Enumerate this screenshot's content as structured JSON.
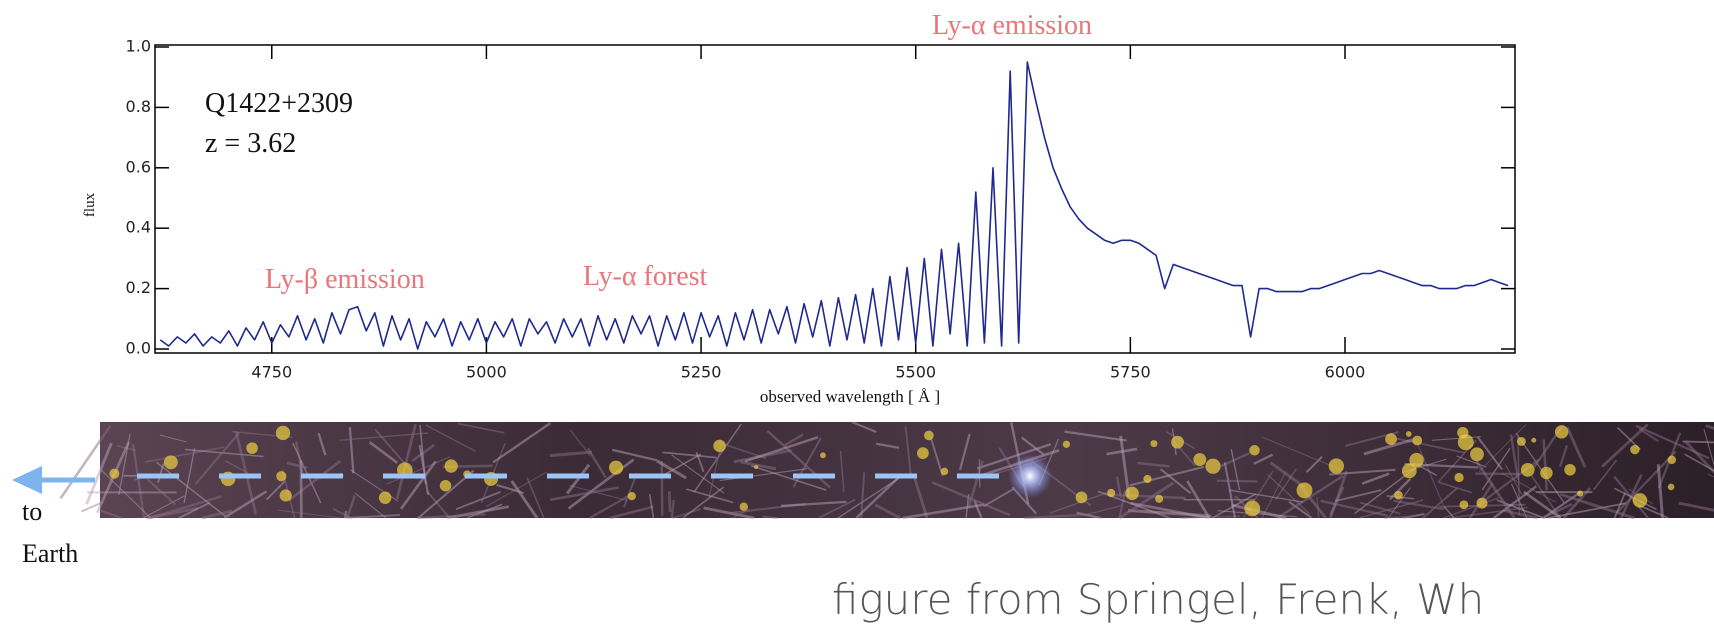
{
  "chart_data": {
    "type": "line",
    "color": "#1f2a8f",
    "ylabel": "flux",
    "xlabel": "observed wavelength [ Å ]",
    "annotations": [
      "Q1422+2309",
      "z = 3.62",
      "Ly-β emission",
      "Ly-α forest",
      "Ly-α emission"
    ],
    "xlim": [
      4614,
      6198
    ],
    "ylim": [
      0,
      1
    ],
    "xticks": [
      4750,
      5000,
      5250,
      5500,
      5750,
      6000
    ],
    "yticks": [
      {
        "value": 0,
        "label": "0.0"
      },
      0.2,
      0.4,
      0.6,
      0.8,
      {
        "value": 1,
        "label": "1.0"
      }
    ],
    "x": [
      4620,
      4630,
      4640,
      4650,
      4660,
      4670,
      4680,
      4690,
      4700,
      4710,
      4720,
      4730,
      4740,
      4750,
      4760,
      4770,
      4780,
      4790,
      4800,
      4810,
      4820,
      4830,
      4840,
      4850,
      4860,
      4870,
      4880,
      4890,
      4900,
      4910,
      4920,
      4930,
      4940,
      4950,
      4960,
      4970,
      4980,
      4990,
      5000,
      5010,
      5020,
      5030,
      5040,
      5050,
      5060,
      5070,
      5080,
      5090,
      5100,
      5110,
      5120,
      5130,
      5140,
      5150,
      5160,
      5170,
      5180,
      5190,
      5200,
      5210,
      5220,
      5230,
      5240,
      5250,
      5260,
      5270,
      5280,
      5290,
      5300,
      5310,
      5320,
      5330,
      5340,
      5350,
      5360,
      5370,
      5380,
      5390,
      5400,
      5410,
      5420,
      5430,
      5440,
      5450,
      5460,
      5470,
      5480,
      5490,
      5500,
      5510,
      5520,
      5530,
      5540,
      5550,
      5560,
      5570,
      5580,
      5590,
      5600,
      5610,
      5620,
      5630,
      5640,
      5650,
      5660,
      5670,
      5680,
      5690,
      5700,
      5710,
      5720,
      5730,
      5740,
      5750,
      5760,
      5770,
      5780,
      5790,
      5800,
      5810,
      5820,
      5830,
      5840,
      5850,
      5860,
      5870,
      5880,
      5890,
      5900,
      5910,
      5920,
      5930,
      5940,
      5950,
      5960,
      5970,
      5980,
      5990,
      6000,
      6010,
      6020,
      6030,
      6040,
      6050,
      6060,
      6070,
      6080,
      6090,
      6100,
      6110,
      6120,
      6130,
      6140,
      6150,
      6160,
      6170,
      6180,
      6190
    ],
    "values": [
      0.03,
      0.01,
      0.04,
      0.02,
      0.05,
      0.01,
      0.04,
      0.02,
      0.06,
      0.01,
      0.07,
      0.03,
      0.09,
      0.02,
      0.08,
      0.04,
      0.11,
      0.03,
      0.1,
      0.02,
      0.12,
      0.05,
      0.13,
      0.14,
      0.06,
      0.12,
      0.01,
      0.11,
      0.03,
      0.1,
      0.0,
      0.09,
      0.04,
      0.1,
      0.01,
      0.09,
      0.03,
      0.1,
      0.02,
      0.09,
      0.04,
      0.1,
      0.01,
      0.1,
      0.05,
      0.09,
      0.02,
      0.1,
      0.04,
      0.1,
      0.01,
      0.11,
      0.03,
      0.1,
      0.02,
      0.11,
      0.05,
      0.11,
      0.01,
      0.11,
      0.03,
      0.12,
      0.02,
      0.12,
      0.04,
      0.11,
      0.01,
      0.12,
      0.03,
      0.13,
      0.02,
      0.13,
      0.05,
      0.14,
      0.02,
      0.15,
      0.04,
      0.16,
      0.01,
      0.17,
      0.03,
      0.18,
      0.02,
      0.2,
      0.01,
      0.24,
      0.03,
      0.27,
      0.02,
      0.3,
      0.01,
      0.33,
      0.05,
      0.35,
      0.01,
      0.52,
      0.02,
      0.6,
      0.01,
      0.92,
      0.02,
      0.95,
      0.82,
      0.7,
      0.6,
      0.53,
      0.47,
      0.43,
      0.4,
      0.38,
      0.36,
      0.35,
      0.36,
      0.36,
      0.35,
      0.33,
      0.31,
      0.2,
      0.28,
      0.27,
      0.26,
      0.25,
      0.24,
      0.23,
      0.22,
      0.21,
      0.21,
      0.04,
      0.2,
      0.2,
      0.19,
      0.19,
      0.19,
      0.19,
      0.2,
      0.2,
      0.21,
      0.22,
      0.23,
      0.24,
      0.25,
      0.25,
      0.26,
      0.25,
      0.24,
      0.23,
      0.22,
      0.21,
      0.21,
      0.2,
      0.2,
      0.2,
      0.21,
      0.21,
      0.22,
      0.23,
      0.22,
      0.21
    ]
  },
  "caption": {
    "arrow_label": [
      "to",
      "Earth"
    ],
    "credit": "figure from Springel, Frenk, Wh"
  }
}
